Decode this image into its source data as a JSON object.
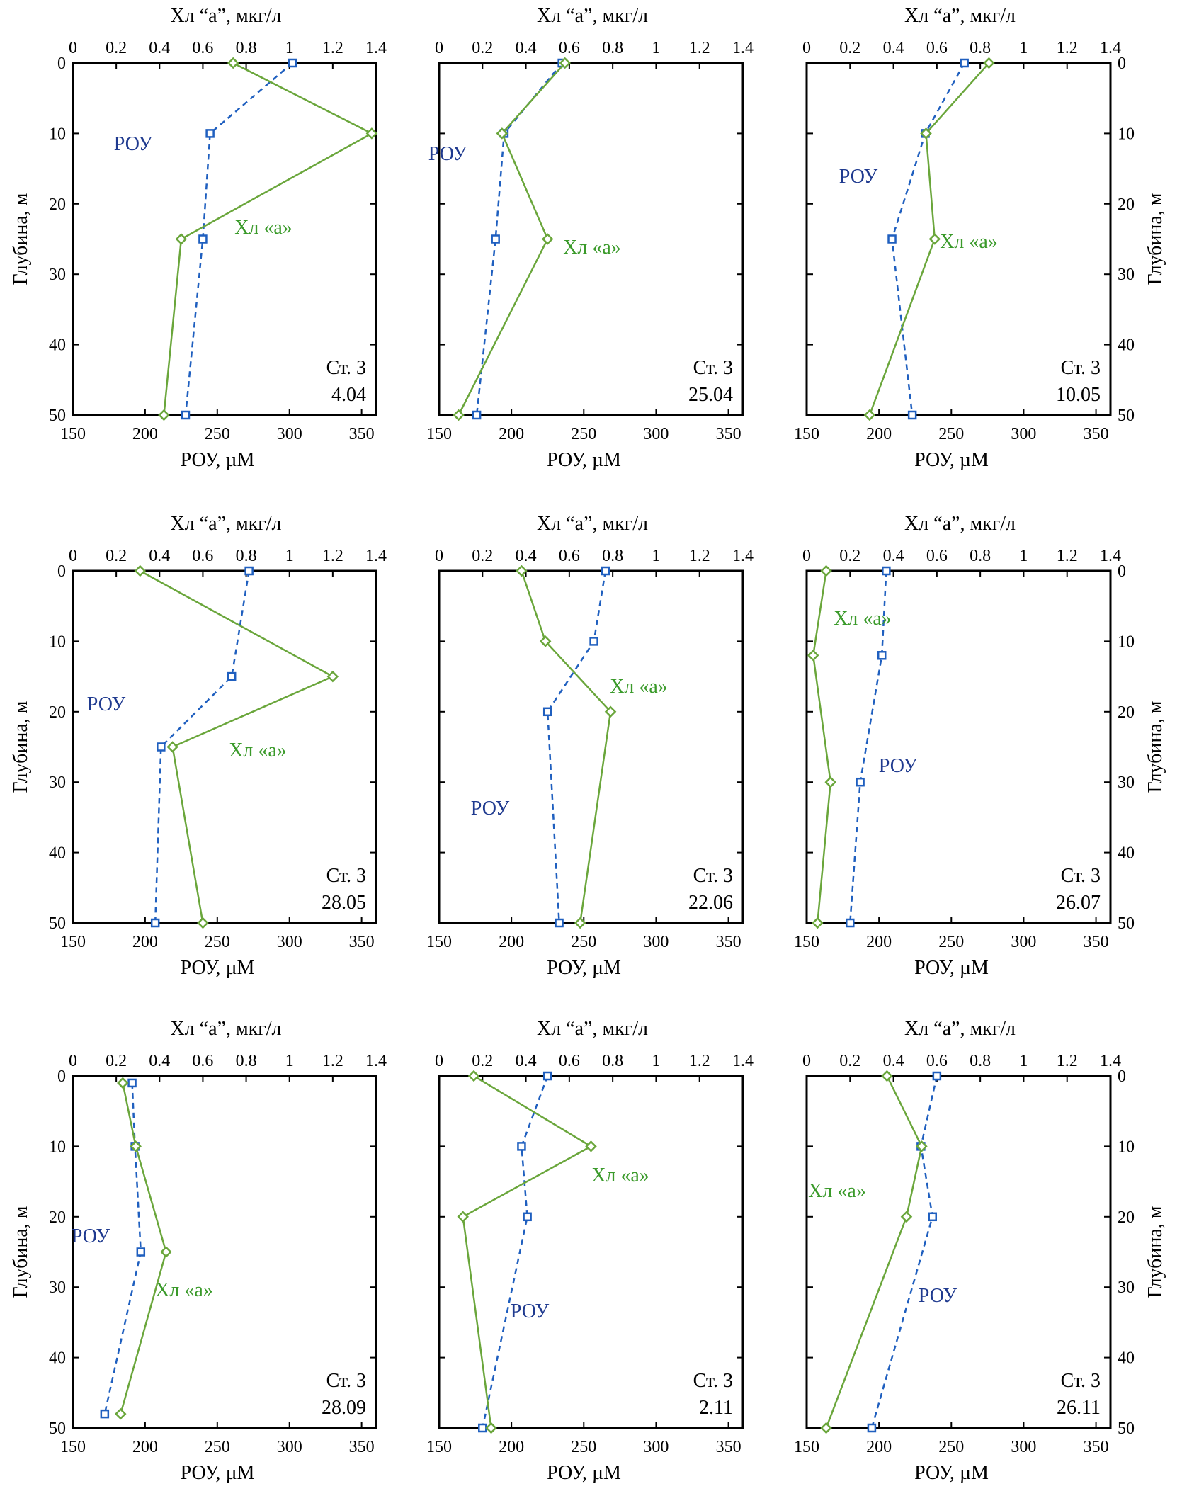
{
  "axes": {
    "chl_title": "Хл “а”, мкг/л",
    "roy_title": "РОУ, µМ",
    "depth_title": "Глубина, м",
    "chl_ticks": [
      "0",
      "0.2",
      "0.4",
      "0.6",
      "0.8",
      "1",
      "1.2",
      "1.4"
    ],
    "roy_ticks": [
      "150",
      "200",
      "250",
      "300",
      "350"
    ],
    "depth_ticks": [
      "0",
      "10",
      "20",
      "30",
      "40",
      "50"
    ]
  },
  "colors": {
    "roy": "#1f5fbf",
    "chl": "#6aa63b",
    "roy_label": "#1f3a8f",
    "chl_label": "#3a9a2a"
  },
  "chart_data": [
    {
      "type": "line",
      "station": "Ст. 3",
      "date": "4.04",
      "xlim_chl": [
        0,
        1.4
      ],
      "xlim_roy": [
        150,
        360
      ],
      "ylim_depth": [
        50,
        0
      ],
      "series": [
        {
          "name": "РОУ",
          "axis": "roy",
          "points": [
            [
              302,
              0
            ],
            [
              245,
              10
            ],
            [
              240,
              25
            ],
            [
              228,
              50
            ]
          ]
        },
        {
          "name": "Хл «а»",
          "axis": "chl",
          "points": [
            [
              0.74,
              0
            ],
            [
              1.38,
              10
            ],
            [
              0.5,
              25
            ],
            [
              0.42,
              50
            ]
          ]
        }
      ],
      "annotations": [
        {
          "text": "РОУ",
          "series": 0
        },
        {
          "text": "Хл «а»",
          "series": 1
        }
      ]
    },
    {
      "type": "line",
      "station": "Ст. 3",
      "date": "25.04",
      "xlim_chl": [
        0,
        1.4
      ],
      "xlim_roy": [
        150,
        360
      ],
      "ylim_depth": [
        50,
        0
      ],
      "series": [
        {
          "name": "РОУ",
          "axis": "roy",
          "points": [
            [
              235,
              0
            ],
            [
              195,
              10
            ],
            [
              189,
              25
            ],
            [
              176,
              50
            ]
          ]
        },
        {
          "name": "Хл «а»",
          "axis": "chl",
          "points": [
            [
              0.58,
              0
            ],
            [
              0.29,
              10
            ],
            [
              0.5,
              25
            ],
            [
              0.09,
              50
            ]
          ]
        }
      ],
      "annotations": [
        {
          "text": "РОУ",
          "series": 0
        },
        {
          "text": "Хл «а»",
          "series": 1
        }
      ]
    },
    {
      "type": "line",
      "station": "Ст. 3",
      "date": "10.05",
      "xlim_chl": [
        0,
        1.4
      ],
      "xlim_roy": [
        150,
        360
      ],
      "ylim_depth": [
        50,
        0
      ],
      "series": [
        {
          "name": "РОУ",
          "axis": "roy",
          "points": [
            [
              259,
              0
            ],
            [
              232,
              10
            ],
            [
              209,
              25
            ],
            [
              223,
              50
            ]
          ]
        },
        {
          "name": "Хл «а»",
          "axis": "chl",
          "points": [
            [
              0.84,
              0
            ],
            [
              0.55,
              10
            ],
            [
              0.59,
              25
            ],
            [
              0.29,
              50
            ]
          ]
        }
      ],
      "annotations": [
        {
          "text": "РОУ",
          "series": 0
        },
        {
          "text": "Хл «а»",
          "series": 1
        }
      ]
    },
    {
      "type": "line",
      "station": "Ст. 3",
      "date": "28.05",
      "xlim_chl": [
        0,
        1.4
      ],
      "xlim_roy": [
        150,
        360
      ],
      "ylim_depth": [
        50,
        0
      ],
      "series": [
        {
          "name": "РОУ",
          "axis": "roy",
          "points": [
            [
              272,
              0
            ],
            [
              260,
              15
            ],
            [
              211,
              25
            ],
            [
              207,
              50
            ]
          ]
        },
        {
          "name": "Хл «а»",
          "axis": "chl",
          "points": [
            [
              0.31,
              0
            ],
            [
              1.2,
              15
            ],
            [
              0.46,
              25
            ],
            [
              0.6,
              50
            ]
          ]
        }
      ],
      "annotations": [
        {
          "text": "РОУ",
          "series": 0
        },
        {
          "text": "Хл «а»",
          "series": 1
        }
      ]
    },
    {
      "type": "line",
      "station": "Ст. 3",
      "date": "22.06",
      "xlim_chl": [
        0,
        1.4
      ],
      "xlim_roy": [
        150,
        360
      ],
      "ylim_depth": [
        50,
        0
      ],
      "series": [
        {
          "name": "РОУ",
          "axis": "roy",
          "points": [
            [
              265,
              0
            ],
            [
              257,
              10
            ],
            [
              225,
              20
            ],
            [
              233,
              50
            ]
          ]
        },
        {
          "name": "Хл «а»",
          "axis": "chl",
          "points": [
            [
              0.38,
              0
            ],
            [
              0.49,
              10
            ],
            [
              0.79,
              20
            ],
            [
              0.65,
              50
            ]
          ]
        }
      ],
      "annotations": [
        {
          "text": "Хл «а»",
          "series": 1
        },
        {
          "text": "РОУ",
          "series": 0
        }
      ]
    },
    {
      "type": "line",
      "station": "Ст. 3",
      "date": "26.07",
      "xlim_chl": [
        0,
        1.4
      ],
      "xlim_roy": [
        150,
        360
      ],
      "ylim_depth": [
        50,
        0
      ],
      "series": [
        {
          "name": "РОУ",
          "axis": "roy",
          "points": [
            [
              205,
              0
            ],
            [
              202,
              12
            ],
            [
              187,
              30
            ],
            [
              180,
              50
            ]
          ]
        },
        {
          "name": "Хл «а»",
          "axis": "chl",
          "points": [
            [
              0.09,
              0
            ],
            [
              0.03,
              12
            ],
            [
              0.11,
              30
            ],
            [
              0.05,
              50
            ]
          ]
        }
      ],
      "annotations": [
        {
          "text": "Хл «а»",
          "series": 1
        },
        {
          "text": "РОУ",
          "series": 0
        }
      ]
    },
    {
      "type": "line",
      "station": "Ст. 3",
      "date": "28.09",
      "xlim_chl": [
        0,
        1.4
      ],
      "xlim_roy": [
        150,
        360
      ],
      "ylim_depth": [
        50,
        0
      ],
      "series": [
        {
          "name": "РОУ",
          "axis": "roy",
          "points": [
            [
              191,
              1
            ],
            [
              193,
              10
            ],
            [
              197,
              25
            ],
            [
              172,
              48
            ]
          ]
        },
        {
          "name": "Хл «а»",
          "axis": "chl",
          "points": [
            [
              0.23,
              1
            ],
            [
              0.29,
              10
            ],
            [
              0.43,
              25
            ],
            [
              0.22,
              48
            ]
          ]
        }
      ],
      "annotations": [
        {
          "text": "РОУ",
          "series": 0
        },
        {
          "text": "Хл «а»",
          "series": 1
        }
      ]
    },
    {
      "type": "line",
      "station": "Ст. 3",
      "date": "2.11",
      "xlim_chl": [
        0,
        1.4
      ],
      "xlim_roy": [
        150,
        360
      ],
      "ylim_depth": [
        50,
        0
      ],
      "series": [
        {
          "name": "РОУ",
          "axis": "roy",
          "points": [
            [
              225,
              0
            ],
            [
              207,
              10
            ],
            [
              211,
              20
            ],
            [
              180,
              50
            ]
          ]
        },
        {
          "name": "Хл «а»",
          "axis": "chl",
          "points": [
            [
              0.16,
              0
            ],
            [
              0.7,
              10
            ],
            [
              0.11,
              20
            ],
            [
              0.24,
              50
            ]
          ]
        }
      ],
      "annotations": [
        {
          "text": "Хл «а»",
          "series": 1
        },
        {
          "text": "РОУ",
          "series": 0
        }
      ]
    },
    {
      "type": "line",
      "station": "Ст. 3",
      "date": "26.11",
      "xlim_chl": [
        0,
        1.4
      ],
      "xlim_roy": [
        150,
        360
      ],
      "ylim_depth": [
        50,
        0
      ],
      "series": [
        {
          "name": "РОУ",
          "axis": "roy",
          "points": [
            [
              240,
              0
            ],
            [
              229,
              10
            ],
            [
              237,
              20
            ],
            [
              195,
              50
            ]
          ]
        },
        {
          "name": "Хл «а»",
          "axis": "chl",
          "points": [
            [
              0.37,
              0
            ],
            [
              0.53,
              10
            ],
            [
              0.46,
              20
            ],
            [
              0.09,
              50
            ]
          ]
        }
      ],
      "annotations": [
        {
          "text": "Хл «а»",
          "series": 1
        },
        {
          "text": "РОУ",
          "series": 0
        }
      ]
    }
  ]
}
